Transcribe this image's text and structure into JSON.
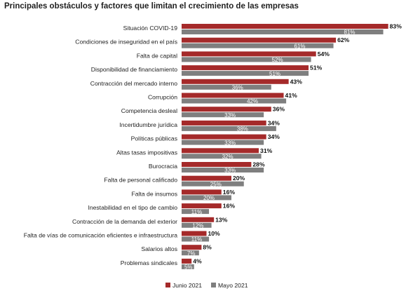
{
  "chart_data": {
    "type": "bar",
    "orientation": "horizontal",
    "title": "Principales obstáculos y factores que limitan el crecimiento de las empresas",
    "xlim": [
      0,
      85
    ],
    "categories": [
      "Situación COVID-19",
      "Condiciones de inseguridad en el país",
      "Falta de capital",
      "Disponibilidad de financiamiento",
      "Contracción del mercado interno",
      "Corrupción",
      "Competencia desleal",
      "Incertidumbre jurídica",
      "Políticas públicas",
      "Altas tasas impositivas",
      "Burocracia",
      "Falta de personal calificado",
      "Falta de insumos",
      "Inestabilidad en el tipo de cambio",
      "Contracción de la demanda del exterior",
      "Falta de vías de comunicación eficientes e infraestructura",
      "Salarios altos",
      "Problemas sindicales"
    ],
    "series": [
      {
        "name": "Junio 2021",
        "color": "#a52a2a",
        "values": [
          83,
          62,
          54,
          51,
          43,
          41,
          36,
          34,
          34,
          31,
          28,
          20,
          16,
          16,
          13,
          10,
          8,
          4
        ],
        "labels": [
          "83%",
          "62%",
          "54%",
          "51%",
          "43%",
          "41%",
          "36%",
          "34%",
          "34%",
          "31%",
          "28%",
          "20%",
          "16%",
          "16%",
          "13%",
          "10%",
          "8%",
          "4%"
        ]
      },
      {
        "name": "Mayo 2021",
        "color": "#7f7f7f",
        "values": [
          81,
          61,
          52,
          51,
          36,
          42,
          33,
          38,
          33,
          32,
          33,
          25,
          20,
          11,
          12,
          11,
          7,
          5
        ],
        "labels": [
          "81%",
          "61%",
          "52%",
          "51%",
          "36%",
          "42%",
          "33%",
          "38%",
          "33%",
          "32%",
          "33%",
          "25%",
          "20%",
          "11%",
          "12%",
          "11%",
          "7%",
          "5%"
        ]
      }
    ],
    "grid": false,
    "legend_position": "bottom"
  }
}
